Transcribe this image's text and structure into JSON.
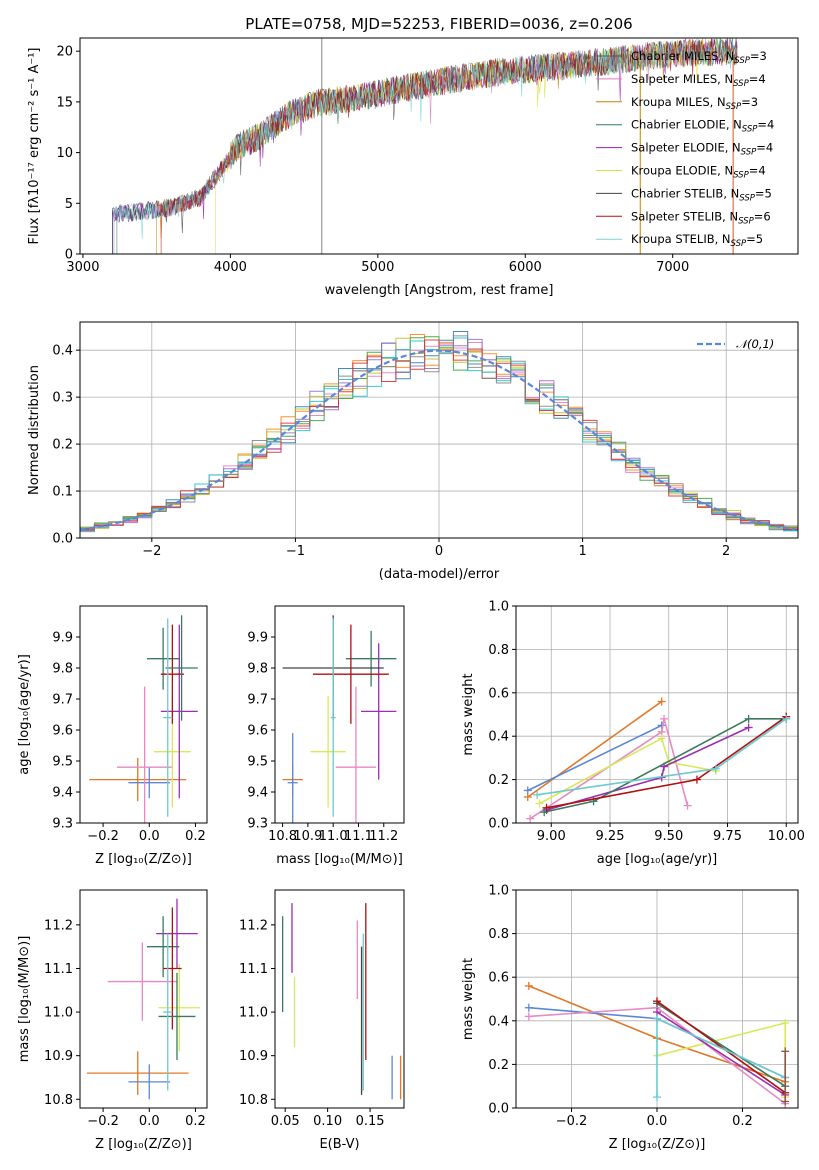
{
  "chart_data": [
    {
      "id": "spectrum",
      "type": "line",
      "title": "PLATE=0758, MJD=52253, FIBERID=0036, z=0.206",
      "xlabel": "wavelength [Angstrom, rest frame]",
      "ylabel": "Flux [fλ10⁻¹⁷ erg cm⁻² s⁻¹ A⁻¹]",
      "xlim": [
        2980,
        7850
      ],
      "ylim": [
        0,
        21.3
      ],
      "xticks": [
        3000,
        4000,
        5000,
        6000,
        7000
      ],
      "yticks": [
        0,
        5,
        10,
        15,
        20
      ],
      "grid": false,
      "legend_position": "right",
      "series": [
        {
          "name": "Chabrier MILES, N_SSP=3",
          "color": "#555555"
        },
        {
          "name": "Salpeter MILES, N_SSP=4",
          "color": "#e377c2"
        },
        {
          "name": "Kroupa MILES, N_SSP=3",
          "color": "#c98000"
        },
        {
          "name": "Chabrier ELODIE, N_SSP=4",
          "color": "#2e7d5b"
        },
        {
          "name": "Salpeter ELODIE, N_SSP=4",
          "color": "#9b1fb3"
        },
        {
          "name": "Kroupa ELODIE, N_SSP=4",
          "color": "#d6e04a"
        },
        {
          "name": "Chabrier STELIB, N_SSP=5",
          "color": "#444444"
        },
        {
          "name": "Salpeter STELIB, N_SSP=6",
          "color": "#b01010"
        },
        {
          "name": "Kroupa STELIB, N_SSP=5",
          "color": "#7ad3d8"
        }
      ],
      "continuum_x": [
        3200,
        3400,
        3600,
        3800,
        3950,
        4050,
        4200,
        4400,
        4600,
        4800,
        5000,
        5200,
        5500,
        5800,
        6000,
        6300,
        6600,
        6900,
        7200,
        7450
      ],
      "continuum_y": [
        3.9,
        4.2,
        4.6,
        5.6,
        8.6,
        10.6,
        11.6,
        13.8,
        14.9,
        15.3,
        15.8,
        16.4,
        17.2,
        17.9,
        18.2,
        18.6,
        19.1,
        19.6,
        19.9,
        20.0
      ]
    },
    {
      "id": "residuals",
      "type": "histogram",
      "xlabel": "(data-model)/error",
      "ylabel": "Normed distribution",
      "xlim": [
        -2.5,
        2.5
      ],
      "ylim": [
        0,
        0.46
      ],
      "xticks": [
        -2,
        -1,
        0,
        1,
        2
      ],
      "yticks": [
        0.0,
        0.1,
        0.2,
        0.3,
        0.4
      ],
      "grid": true,
      "legend_position": "upper right",
      "reference": {
        "name": "𝒩(0,1)",
        "color": "#5b88d6",
        "style": "dashed"
      },
      "bin_width": 0.1,
      "colors": [
        "#ff7f0e",
        "#1f77b4",
        "#e377c2",
        "#2ca02c",
        "#9467bd",
        "#bcbd22",
        "#17becf",
        "#d62728",
        "#7f7f7f"
      ]
    },
    {
      "id": "age-vs-z",
      "type": "errorbar",
      "xlabel": "Z [log₁₀(Z/Z⊙)]",
      "ylabel": "age  [log₁₀(age/yr)]",
      "xlim": [
        -0.3,
        0.25
      ],
      "ylim": [
        9.3,
        10.0
      ],
      "xticks": [
        -0.2,
        0.0,
        0.2
      ],
      "yticks": [
        9.3,
        9.4,
        9.5,
        9.6,
        9.7,
        9.8,
        9.9
      ],
      "points": [
        {
          "x": -0.05,
          "y": 9.44,
          "xerr": 0.21,
          "yerr": 0.07,
          "color": "#e0782a"
        },
        {
          "x": 0.0,
          "y": 9.43,
          "xerr": 0.09,
          "yerr": 0.05,
          "color": "#5b88d6"
        },
        {
          "x": -0.02,
          "y": 9.48,
          "xerr": 0.12,
          "yerr": 0.26,
          "color": "#e78ac3"
        },
        {
          "x": 0.1,
          "y": 9.53,
          "xerr": 0.08,
          "yerr": 0.18,
          "color": "#d8e85a"
        },
        {
          "x": 0.13,
          "y": 9.66,
          "xerr": 0.08,
          "yerr": 0.28,
          "color": "#9b2fb0"
        },
        {
          "x": 0.06,
          "y": 9.83,
          "xerr": 0.07,
          "yerr": 0.1,
          "color": "#3b7a5e"
        },
        {
          "x": 0.1,
          "y": 9.78,
          "xerr": 0.05,
          "yerr": 0.16,
          "color": "#b01010"
        },
        {
          "x": 0.14,
          "y": 9.8,
          "xerr": 0.07,
          "yerr": 0.17,
          "color": "#3b7a5e"
        },
        {
          "x": 0.08,
          "y": 9.64,
          "xerr": 0.02,
          "yerr": 0.32,
          "color": "#6ec9cf"
        }
      ]
    },
    {
      "id": "age-vs-mass",
      "type": "errorbar",
      "xlabel": "mass [log₁₀(M/M⊙)]",
      "ylabel": "",
      "xlim": [
        10.77,
        11.28
      ],
      "ylim": [
        9.3,
        10.0
      ],
      "xticks": [
        10.8,
        10.9,
        11.0,
        11.1,
        11.2
      ],
      "yticks": [
        9.3,
        9.4,
        9.5,
        9.6,
        9.7,
        9.8,
        9.9
      ],
      "points": [
        {
          "x": 10.84,
          "y": 9.44,
          "xerr": 0.04,
          "yerr": 0.05,
          "color": "#e0782a"
        },
        {
          "x": 10.84,
          "y": 9.43,
          "xerr": 0.02,
          "yerr": 0.16,
          "color": "#5b88d6"
        },
        {
          "x": 11.09,
          "y": 9.48,
          "xerr": 0.08,
          "yerr": 0.26,
          "color": "#e78ac3"
        },
        {
          "x": 10.98,
          "y": 9.53,
          "xerr": 0.07,
          "yerr": 0.18,
          "color": "#d8e85a"
        },
        {
          "x": 11.18,
          "y": 9.66,
          "xerr": 0.07,
          "yerr": 0.22,
          "color": "#9b2fb0"
        },
        {
          "x": 11.15,
          "y": 9.83,
          "xerr": 0.1,
          "yerr": 0.09,
          "color": "#3b7a5e"
        },
        {
          "x": 11.07,
          "y": 9.78,
          "xerr": 0.15,
          "yerr": 0.16,
          "color": "#b01010"
        },
        {
          "x": 11.0,
          "y": 9.8,
          "xerr": 0.2,
          "yerr": 0.17,
          "color": "#444444"
        },
        {
          "x": 11.0,
          "y": 9.64,
          "xerr": 0.01,
          "yerr": 0.32,
          "color": "#6ec9cf"
        }
      ]
    },
    {
      "id": "weight-vs-age",
      "type": "line",
      "xlabel": "age  [log₁₀(age/yr)]",
      "ylabel": "mass weight",
      "xlim": [
        8.85,
        10.05
      ],
      "ylim": [
        0.0,
        1.0
      ],
      "xticks": [
        9.0,
        9.25,
        9.5,
        9.75,
        10.0
      ],
      "yticks": [
        0.0,
        0.2,
        0.4,
        0.6,
        0.8,
        1.0
      ],
      "grid": true,
      "series": [
        {
          "color": "#e0782a",
          "x": [
            8.9,
            9.47
          ],
          "y": [
            0.12,
            0.56
          ]
        },
        {
          "color": "#5b88d6",
          "x": [
            8.9,
            9.47
          ],
          "y": [
            0.15,
            0.45
          ]
        },
        {
          "color": "#e78ac3",
          "x": [
            8.91,
            9.47,
            9.48,
            9.58
          ],
          "y": [
            0.02,
            0.42,
            0.48,
            0.08
          ]
        },
        {
          "color": "#d8e85a",
          "x": [
            8.95,
            9.47,
            9.5,
            9.7
          ],
          "y": [
            0.09,
            0.39,
            0.28,
            0.24
          ]
        },
        {
          "color": "#9b2fb0",
          "x": [
            8.98,
            9.47,
            9.48,
            9.84
          ],
          "y": [
            0.06,
            0.21,
            0.26,
            0.44
          ]
        },
        {
          "color": "#3b7a5e",
          "x": [
            8.97,
            9.18,
            9.84,
            10.0
          ],
          "y": [
            0.05,
            0.1,
            0.48,
            0.48
          ]
        },
        {
          "color": "#b01010",
          "x": [
            8.98,
            9.62,
            10.0
          ],
          "y": [
            0.07,
            0.2,
            0.49
          ]
        },
        {
          "color": "#6ec9cf",
          "x": [
            8.94,
            9.7,
            10.0
          ],
          "y": [
            0.13,
            0.25,
            0.48
          ]
        }
      ]
    },
    {
      "id": "mass-vs-z",
      "type": "errorbar",
      "xlabel": "Z [log₁₀(Z/Z⊙)]",
      "ylabel": "mass [log₁₀(M/M⊙)]",
      "xlim": [
        -0.3,
        0.25
      ],
      "ylim": [
        10.78,
        11.28
      ],
      "xticks": [
        -0.2,
        0.0,
        0.2
      ],
      "yticks": [
        10.8,
        10.9,
        11.0,
        11.1,
        11.2
      ],
      "points": [
        {
          "x": -0.05,
          "y": 10.86,
          "xerr": 0.22,
          "yerr": 0.05,
          "color": "#e0782a"
        },
        {
          "x": 0.0,
          "y": 10.84,
          "xerr": 0.09,
          "yerr": 0.04,
          "color": "#5b88d6"
        },
        {
          "x": -0.03,
          "y": 11.07,
          "xerr": 0.15,
          "yerr": 0.09,
          "color": "#e78ac3"
        },
        {
          "x": 0.13,
          "y": 11.01,
          "xerr": 0.09,
          "yerr": 0.1,
          "color": "#d8e85a"
        },
        {
          "x": 0.12,
          "y": 11.18,
          "xerr": 0.09,
          "yerr": 0.08,
          "color": "#9b2fb0"
        },
        {
          "x": 0.06,
          "y": 11.15,
          "xerr": 0.07,
          "yerr": 0.07,
          "color": "#3b7a5e"
        },
        {
          "x": 0.1,
          "y": 11.1,
          "xerr": 0.04,
          "yerr": 0.14,
          "color": "#b01010"
        },
        {
          "x": 0.12,
          "y": 10.99,
          "xerr": 0.08,
          "yerr": 0.1,
          "color": "#3b7a5e"
        },
        {
          "x": 0.08,
          "y": 11.0,
          "xerr": 0.02,
          "yerr": 0.18,
          "color": "#6ec9cf"
        }
      ]
    },
    {
      "id": "mass-vs-ebv",
      "type": "errorbar",
      "xlabel": "E(B-V)",
      "ylabel": "",
      "xlim": [
        0.038,
        0.19
      ],
      "ylim": [
        10.78,
        11.28
      ],
      "xticks": [
        0.05,
        0.1,
        0.15
      ],
      "yticks": [
        10.8,
        10.9,
        11.0,
        11.1,
        11.2
      ],
      "points": [
        {
          "x": 0.047,
          "y": 11.11,
          "xerr": 0,
          "yerr": 0.11,
          "color": "#3b7a5e"
        },
        {
          "x": 0.058,
          "y": 11.17,
          "xerr": 0,
          "yerr": 0.08,
          "color": "#9b2fb0"
        },
        {
          "x": 0.061,
          "y": 11.0,
          "xerr": 0,
          "yerr": 0.08,
          "color": "#d8e85a"
        },
        {
          "x": 0.135,
          "y": 11.12,
          "xerr": 0,
          "yerr": 0.09,
          "color": "#e78ac3"
        },
        {
          "x": 0.14,
          "y": 10.98,
          "xerr": 0,
          "yerr": 0.17,
          "color": "#444444"
        },
        {
          "x": 0.142,
          "y": 11.0,
          "xerr": 0,
          "yerr": 0.18,
          "color": "#6ec9cf"
        },
        {
          "x": 0.145,
          "y": 11.07,
          "xerr": 0,
          "yerr": 0.18,
          "color": "#b01010"
        },
        {
          "x": 0.176,
          "y": 10.85,
          "xerr": 0,
          "yerr": 0.05,
          "color": "#5b88d6"
        },
        {
          "x": 0.186,
          "y": 10.85,
          "xerr": 0,
          "yerr": 0.05,
          "color": "#e0782a"
        }
      ]
    },
    {
      "id": "weight-vs-z",
      "type": "line",
      "xlabel": "Z [log₁₀(Z/Z⊙)]",
      "ylabel": "mass weight",
      "xlim": [
        -0.33,
        0.33
      ],
      "ylim": [
        0.0,
        1.0
      ],
      "xticks": [
        -0.2,
        0.0,
        0.2
      ],
      "yticks": [
        0.0,
        0.2,
        0.4,
        0.6,
        0.8,
        1.0
      ],
      "grid": true,
      "series": [
        {
          "color": "#e0782a",
          "x": [
            -0.3,
            0.0,
            0.3
          ],
          "y": [
            0.56,
            0.32,
            0.12
          ]
        },
        {
          "color": "#5b88d6",
          "x": [
            -0.3,
            0.0,
            0.3
          ],
          "y": [
            0.46,
            0.41,
            0.14
          ]
        },
        {
          "color": "#e78ac3",
          "x": [
            -0.3,
            0.0,
            0.3
          ],
          "y": [
            0.42,
            0.46,
            0.02
          ]
        },
        {
          "color": "#d8e85a",
          "x": [
            0.0,
            0.3,
            0.3
          ],
          "y": [
            0.24,
            0.39,
            0.05
          ]
        },
        {
          "color": "#9b2fb0",
          "x": [
            0.0,
            0.3
          ],
          "y": [
            0.44,
            0.06
          ]
        },
        {
          "color": "#3b7a5e",
          "x": [
            0.0,
            0.3
          ],
          "y": [
            0.48,
            0.1
          ]
        },
        {
          "color": "#b01010",
          "x": [
            0.0,
            0.3
          ],
          "y": [
            0.49,
            0.07
          ]
        },
        {
          "color": "#6ec9cf",
          "x": [
            0.0,
            0.0,
            0.3
          ],
          "y": [
            0.05,
            0.41,
            0.14
          ]
        },
        {
          "color": "#8c564b",
          "x": [
            0.3,
            0.3
          ],
          "y": [
            0.26,
            0.03
          ]
        }
      ]
    }
  ]
}
